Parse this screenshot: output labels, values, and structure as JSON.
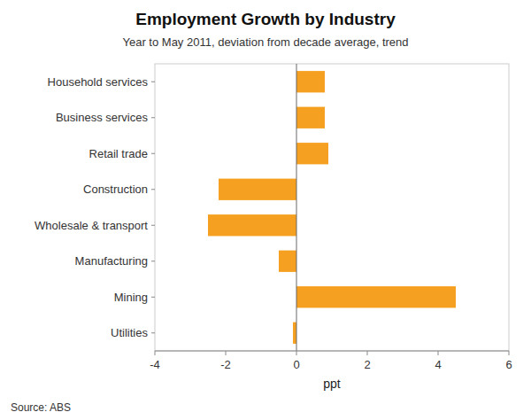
{
  "chart_data": {
    "type": "bar",
    "orientation": "horizontal",
    "title": "Employment Growth by Industry",
    "subtitle": "Year to May 2011, deviation from decade average, trend",
    "source": "Source: ABS",
    "xlabel": "ppt",
    "categories": [
      "Household services",
      "Business services",
      "Retail trade",
      "Construction",
      "Wholesale & transport",
      "Manufacturing",
      "Mining",
      "Utilities"
    ],
    "values": [
      0.8,
      0.8,
      0.9,
      -2.2,
      -2.5,
      -0.5,
      4.5,
      -0.1
    ],
    "color": "#F5A020",
    "xlim": [
      -4,
      6
    ],
    "xticks": [
      -4,
      -2,
      0,
      2,
      4,
      6
    ],
    "grid": false
  }
}
